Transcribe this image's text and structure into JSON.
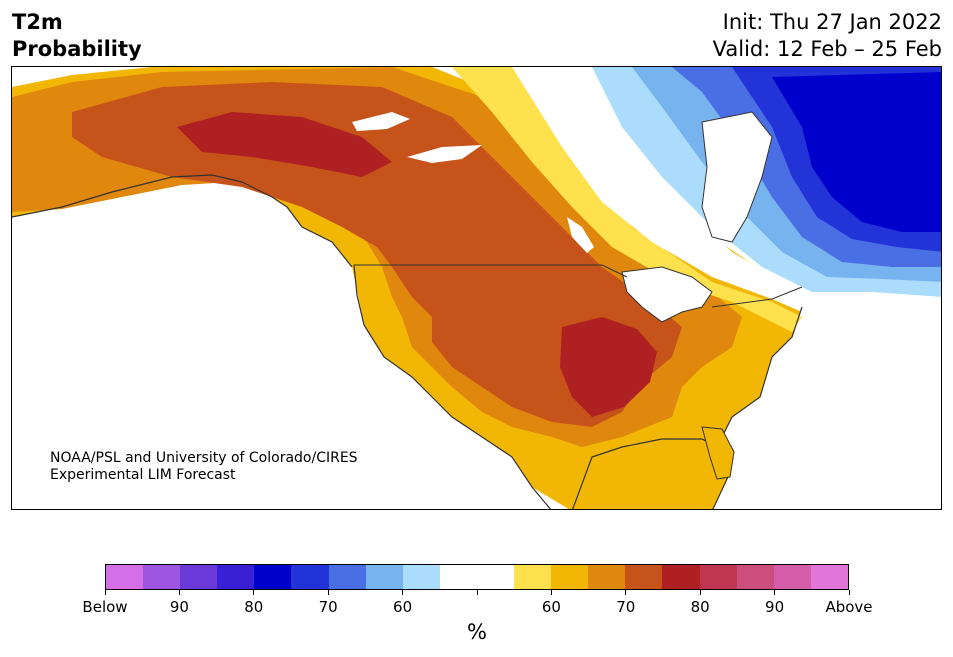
{
  "title": {
    "line1": "T2m",
    "line2": "Probability"
  },
  "info": {
    "init": "Init: Thu 27 Jan 2022",
    "valid": "Valid: 12 Feb – 25 Feb"
  },
  "credit": {
    "line1": "NOAA/PSL and University of Colorado/CIRES",
    "line2": "Experimental LIM Forecast"
  },
  "colorbar": {
    "colors": [
      "#d56fe7",
      "#9e55e0",
      "#6a39d8",
      "#3a20d4",
      "#0000cc",
      "#2233d8",
      "#4a6ee3",
      "#77b3ef",
      "#acdcfb",
      "#ffffff",
      "#ffffff",
      "#ffe14d",
      "#f2b705",
      "#e0870e",
      "#c6541a",
      "#af2022",
      "#c03650",
      "#cc4e7c",
      "#d45ca8",
      "#e176d8"
    ],
    "labels": [
      "Below",
      "90",
      "80",
      "70",
      "60",
      "",
      "60",
      "70",
      "80",
      "90",
      "Above"
    ],
    "unit": "%"
  },
  "map_colors": {
    "land_neutral": "#ffffff",
    "light_orange": "#f2b705",
    "orange": "#e0870e",
    "dark_orange": "#c6541a",
    "red": "#af2022",
    "yellow": "#ffe14d",
    "light_blue": "#acdcfb",
    "sky_blue": "#77b3ef",
    "medium_blue": "#4a6ee3",
    "blue": "#2233d8",
    "deep_blue": "#0000cc",
    "purple_blue": "#3a20d4"
  }
}
